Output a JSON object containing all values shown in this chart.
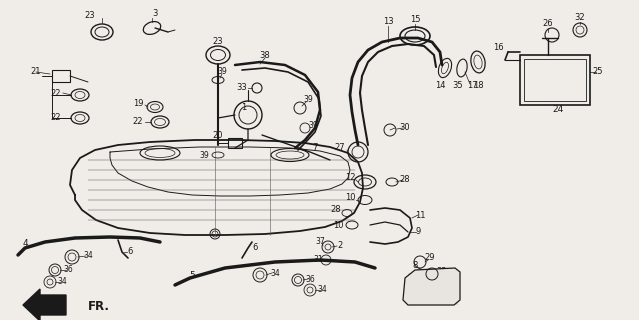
{
  "bg_color": "#f0ede8",
  "line_color": "#1a1a1a",
  "fig_width": 6.39,
  "fig_height": 3.2,
  "dpi": 100
}
